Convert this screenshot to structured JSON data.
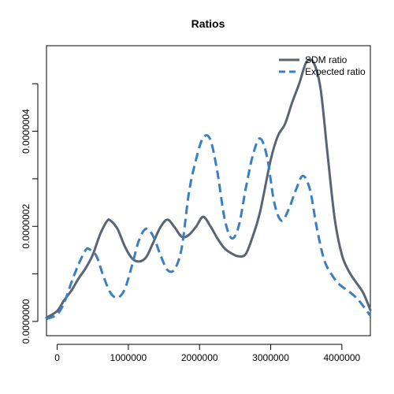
{
  "chart_data": {
    "type": "line",
    "title": "Ratios",
    "xlabel": "",
    "ylabel": "",
    "xlim": [
      -150000,
      4400000
    ],
    "ylim": [
      -3e-08,
      5.8e-07
    ],
    "x_ticks": [
      0,
      1000000,
      2000000,
      3000000,
      4000000
    ],
    "x_tick_labels": [
      "0",
      "1000000",
      "2000000",
      "3000000",
      "4000000"
    ],
    "y_ticks": [
      0,
      1e-07,
      2e-07,
      3e-07,
      4e-07,
      5e-07
    ],
    "y_tick_labels": [
      "0.0000000",
      "",
      "0.0000002",
      "",
      "0.0000004",
      ""
    ],
    "legend_position": "top-right",
    "grid": false,
    "series": [
      {
        "name": "SDM ratio",
        "style": "solid",
        "color": "#5a6472",
        "points": [
          [
            -150000,
            8e-09
          ],
          [
            0,
            2.2e-08
          ],
          [
            100000,
            4.5e-08
          ],
          [
            200000,
            6.5e-08
          ],
          [
            300000,
            9e-08
          ],
          [
            400000,
            1.12e-07
          ],
          [
            500000,
            1.4e-07
          ],
          [
            600000,
            1.82e-07
          ],
          [
            700000,
            2.11e-07
          ],
          [
            750000,
            2.12e-07
          ],
          [
            850000,
            1.94e-07
          ],
          [
            950000,
            1.58e-07
          ],
          [
            1050000,
            1.33e-07
          ],
          [
            1150000,
            1.26e-07
          ],
          [
            1250000,
            1.35e-07
          ],
          [
            1350000,
            1.66e-07
          ],
          [
            1450000,
            1.98e-07
          ],
          [
            1550000,
            2.14e-07
          ],
          [
            1650000,
            1.98e-07
          ],
          [
            1750000,
            1.78e-07
          ],
          [
            1850000,
            1.82e-07
          ],
          [
            1950000,
            1.99e-07
          ],
          [
            2050000,
            2.2e-07
          ],
          [
            2150000,
            2.01e-07
          ],
          [
            2250000,
            1.75e-07
          ],
          [
            2350000,
            1.54e-07
          ],
          [
            2450000,
            1.43e-07
          ],
          [
            2550000,
            1.37e-07
          ],
          [
            2650000,
            1.42e-07
          ],
          [
            2750000,
            1.8e-07
          ],
          [
            2850000,
            2.3e-07
          ],
          [
            3000000,
            3.4e-07
          ],
          [
            3100000,
            3.9e-07
          ],
          [
            3200000,
            4.15e-07
          ],
          [
            3300000,
            4.6e-07
          ],
          [
            3400000,
            5e-07
          ],
          [
            3500000,
            5.45e-07
          ],
          [
            3600000,
            5.45e-07
          ],
          [
            3700000,
            4.9e-07
          ],
          [
            3800000,
            3.5e-07
          ],
          [
            3900000,
            2.15e-07
          ],
          [
            4000000,
            1.4e-07
          ],
          [
            4100000,
            1.05e-07
          ],
          [
            4200000,
            8.2e-08
          ],
          [
            4300000,
            6e-08
          ],
          [
            4400000,
            2.4e-08
          ]
        ]
      },
      {
        "name": "Expected ratio",
        "style": "dashed",
        "color": "#3a7fc4",
        "points": [
          [
            -150000,
            5e-09
          ],
          [
            0,
            1.5e-08
          ],
          [
            100000,
            4e-08
          ],
          [
            200000,
            8.2e-08
          ],
          [
            300000,
            1.2e-07
          ],
          [
            400000,
            1.5e-07
          ],
          [
            450000,
            1.52e-07
          ],
          [
            550000,
            1.38e-07
          ],
          [
            650000,
            9.5e-08
          ],
          [
            750000,
            6e-08
          ],
          [
            850000,
            5e-08
          ],
          [
            950000,
            6.8e-08
          ],
          [
            1050000,
            1.17e-07
          ],
          [
            1150000,
            1.71e-07
          ],
          [
            1250000,
            1.95e-07
          ],
          [
            1350000,
            1.79e-07
          ],
          [
            1450000,
            1.4e-07
          ],
          [
            1550000,
            1.08e-07
          ],
          [
            1650000,
            1.1e-07
          ],
          [
            1750000,
            1.55e-07
          ],
          [
            1850000,
            2.7e-07
          ],
          [
            1950000,
            3.4e-07
          ],
          [
            2050000,
            3.86e-07
          ],
          [
            2150000,
            3.83e-07
          ],
          [
            2250000,
            3.15e-07
          ],
          [
            2350000,
            2.18e-07
          ],
          [
            2450000,
            1.75e-07
          ],
          [
            2550000,
            2e-07
          ],
          [
            2650000,
            2.8e-07
          ],
          [
            2750000,
            3.5e-07
          ],
          [
            2850000,
            3.85e-07
          ],
          [
            2950000,
            3.45e-07
          ],
          [
            3050000,
            2.5e-07
          ],
          [
            3150000,
            2.12e-07
          ],
          [
            3250000,
            2.35e-07
          ],
          [
            3350000,
            2.75e-07
          ],
          [
            3450000,
            3.06e-07
          ],
          [
            3550000,
            2.78e-07
          ],
          [
            3650000,
            1.95e-07
          ],
          [
            3750000,
            1.3e-07
          ],
          [
            3850000,
            1e-07
          ],
          [
            3950000,
            8e-08
          ],
          [
            4050000,
            6.8e-08
          ],
          [
            4150000,
            5.7e-08
          ],
          [
            4250000,
            4.2e-08
          ],
          [
            4400000,
            1.2e-08
          ]
        ]
      }
    ]
  }
}
